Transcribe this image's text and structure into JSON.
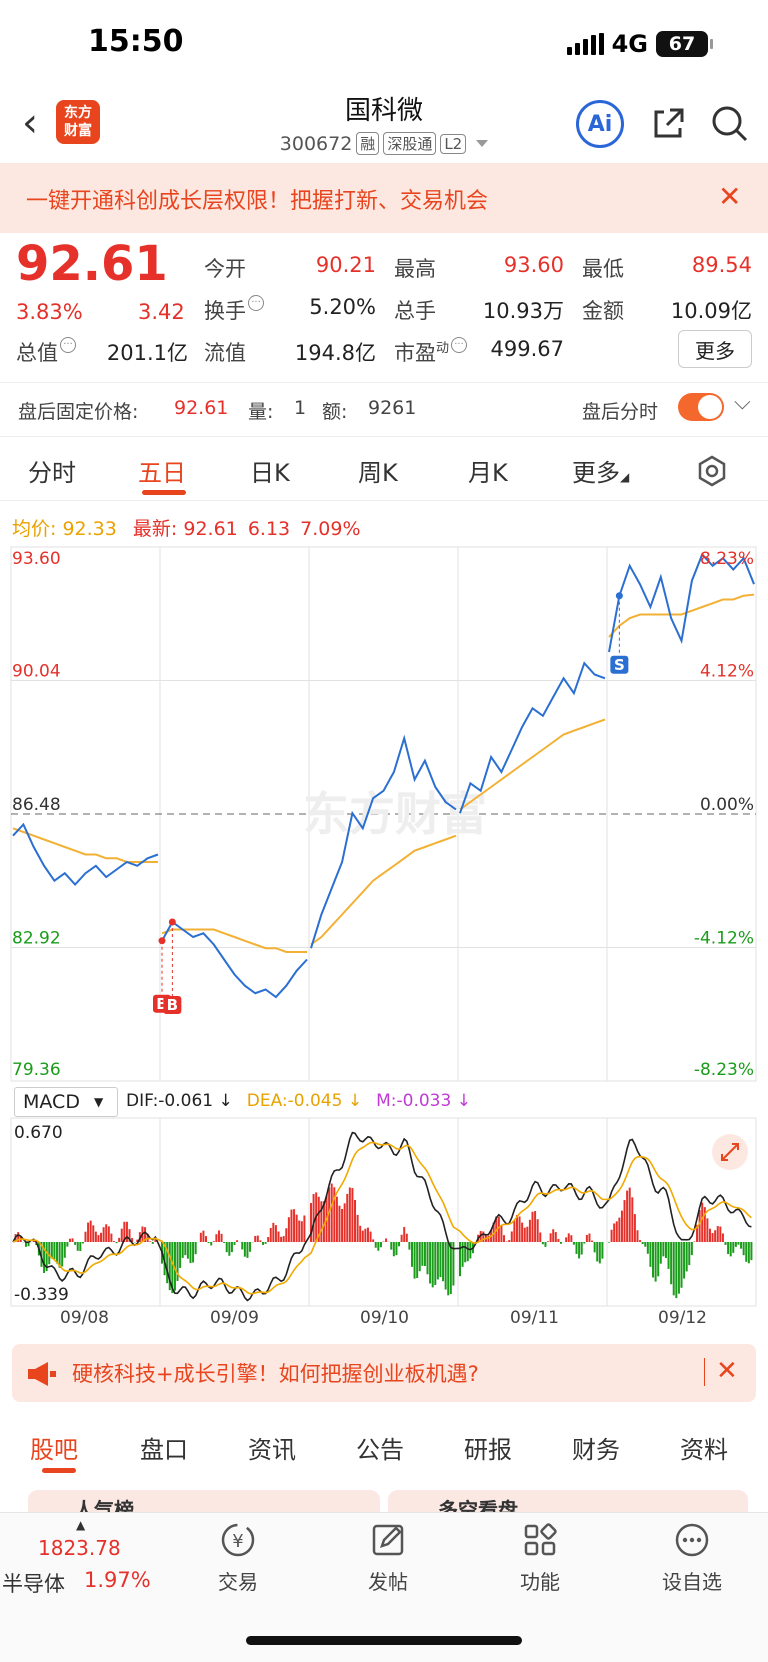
{
  "status": {
    "time": "15:50",
    "network": "4G",
    "battery": "67"
  },
  "nav": {
    "title": "国科微",
    "code": "300672",
    "tags": [
      "融",
      "深股通",
      "L2"
    ],
    "logo_text": "东方财富"
  },
  "banner": {
    "text": "一键开通科创成长层权限！把握打新、交易机会"
  },
  "quote": {
    "price": "92.61",
    "change_pct": "3.83%",
    "change": "3.42",
    "rows": [
      [
        {
          "label": "今开",
          "value": "90.21"
        },
        {
          "label": "最高",
          "value": "93.60"
        },
        {
          "label": "最低",
          "value": "89.54"
        }
      ],
      [
        {
          "label": "换手",
          "value": "5.20%"
        },
        {
          "label": "总手",
          "value": "10.93万"
        },
        {
          "label": "金额",
          "value": "10.09亿"
        }
      ],
      [
        {
          "label": "总值",
          "value": "201.1亿"
        },
        {
          "label": "流值",
          "value": "194.8亿"
        },
        {
          "label": "市盈",
          "sup": "动",
          "value": "499.67"
        }
      ]
    ],
    "more_label": "更多"
  },
  "after_hours": {
    "label": "盘后固定价格:",
    "price": "92.61",
    "vol_label": "量:",
    "vol": "1",
    "amt_label": "额:",
    "amt": "9261",
    "toggle_label": "盘后分时",
    "toggle_on": true
  },
  "period_tabs": [
    "分时",
    "五日",
    "日K",
    "周K",
    "月K",
    "更多"
  ],
  "active_period": "五日",
  "info_line": {
    "avg_label": "均价:",
    "avg": "92.33",
    "latest_label": "最新:",
    "latest": "92.61",
    "chg": "6.13",
    "pct": "7.09%"
  },
  "chart_data": {
    "type": "line",
    "title": "",
    "x_days": [
      "09/08",
      "09/09",
      "09/10",
      "09/11",
      "09/12"
    ],
    "y_left_ticks": [
      "93.60",
      "90.04",
      "86.48",
      "82.92",
      "79.36"
    ],
    "y_right_ticks": [
      "8.23%",
      "4.12%",
      "0.00%",
      "-4.12%",
      "-8.23%"
    ],
    "ylim": [
      79.36,
      93.6
    ],
    "prev_close": 86.48,
    "series": [
      {
        "values_per_day": [
          [
            85.9,
            86.2,
            85.6,
            85.1,
            84.7,
            84.9,
            84.6,
            84.9,
            85.1,
            84.8,
            85.0,
            85.2,
            85.1,
            85.3,
            85.4
          ],
          [
            83.1,
            83.6,
            83.4,
            83.2,
            83.3,
            83.0,
            82.6,
            82.2,
            81.9,
            81.7,
            81.8,
            81.6,
            81.9,
            82.3,
            82.6
          ],
          [
            82.9,
            83.8,
            84.5,
            85.2,
            86.5,
            86.1,
            86.9,
            87.1,
            87.6,
            88.5,
            87.4,
            87.9,
            87.2,
            86.8,
            86.6
          ],
          [
            86.5,
            87.3,
            87.1,
            88.0,
            87.6,
            88.2,
            88.8,
            89.3,
            89.1,
            89.6,
            90.1,
            89.7,
            90.5,
            90.2,
            90.1
          ],
          [
            90.8,
            92.3,
            93.1,
            92.6,
            92.0,
            92.8,
            91.7,
            91.1,
            92.7,
            93.4,
            93.1,
            93.3,
            93.0,
            93.3,
            92.61
          ]
        ]
      },
      {
        "avg_per_day": [
          [
            86.1,
            86.0,
            85.9,
            85.8,
            85.7,
            85.6,
            85.5,
            85.4,
            85.4,
            85.3,
            85.3,
            85.2,
            85.2,
            85.2,
            85.2
          ],
          [
            83.3,
            83.4,
            83.4,
            83.4,
            83.4,
            83.4,
            83.3,
            83.2,
            83.1,
            83.0,
            82.9,
            82.9,
            82.8,
            82.8,
            82.8
          ],
          [
            83.0,
            83.2,
            83.5,
            83.8,
            84.1,
            84.4,
            84.7,
            84.9,
            85.1,
            85.3,
            85.5,
            85.6,
            85.7,
            85.8,
            85.9
          ],
          [
            86.6,
            86.8,
            87.0,
            87.2,
            87.4,
            87.6,
            87.8,
            88.0,
            88.2,
            88.4,
            88.6,
            88.7,
            88.8,
            88.9,
            89.0
          ],
          [
            91.2,
            91.5,
            91.7,
            91.8,
            91.8,
            91.8,
            91.8,
            91.8,
            91.9,
            92.0,
            92.1,
            92.2,
            92.2,
            92.3,
            92.33
          ]
        ]
      }
    ],
    "markers": [
      {
        "label": "B",
        "day": 1,
        "index": 0
      },
      {
        "label": "B",
        "day": 1,
        "index": 1
      },
      {
        "label": "S",
        "day": 4,
        "index": 1
      }
    ]
  },
  "macd": {
    "selector": "MACD",
    "dif": "DIF:-0.061",
    "dea": "DEA:-0.045",
    "m": "M:-0.033",
    "top": "0.670",
    "bottom": "-0.339"
  },
  "promo": {
    "text": "硬核科技+成长引擎！如何把握创业板机遇?"
  },
  "content_tabs": [
    "股吧",
    "盘口",
    "资讯",
    "公告",
    "研报",
    "财务",
    "资料"
  ],
  "active_content_tab": "股吧",
  "peek_cards": [
    "人气榜",
    "多空看盘"
  ],
  "bottom_bar": {
    "index_value": "1823.78",
    "index_name": "半导体",
    "index_pct": "1.97%",
    "items": [
      {
        "label": "交易",
        "icon": "yen-cycle-icon"
      },
      {
        "label": "发帖",
        "icon": "edit-icon"
      },
      {
        "label": "功能",
        "icon": "grid-icon"
      },
      {
        "label": "设自选",
        "icon": "more-dots-icon"
      }
    ]
  },
  "colors": {
    "up": "#e5312a",
    "down": "#1a9c1a",
    "accent": "#e8451e",
    "price_line": "#2a6fd1",
    "avg_line": "#f2b134"
  }
}
